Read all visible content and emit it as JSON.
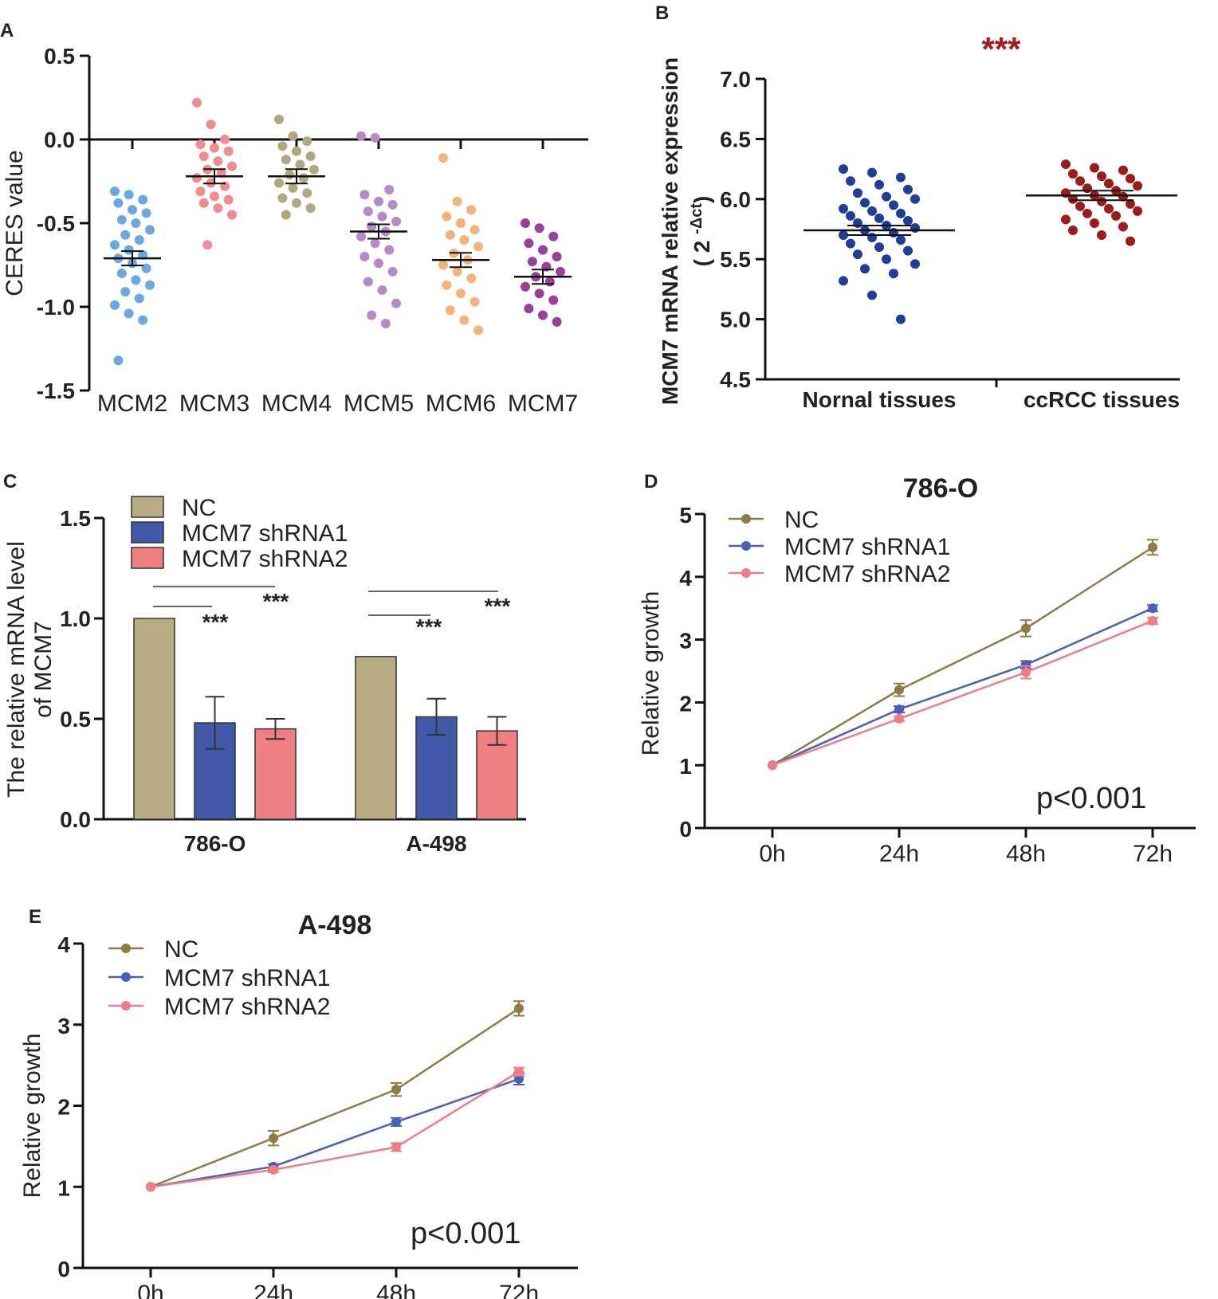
{
  "panels": {
    "a": "A",
    "b": "B",
    "c": "C",
    "d": "D",
    "e": "E"
  },
  "chart_data": [
    {
      "type": "scatter",
      "panel": "A",
      "ylabel": "CERES value",
      "ylim": [
        -1.5,
        0.5
      ],
      "yticks": [
        "0.5",
        "0.0",
        "-0.5",
        "-1.0",
        "-1.5"
      ],
      "categories": [
        "MCM2",
        "MCM3",
        "MCM4",
        "MCM5",
        "MCM6",
        "MCM7"
      ],
      "colors": [
        "#6aa9e0",
        "#f08b91",
        "#b3a780",
        "#b48ac8",
        "#f5b37c",
        "#9b3f98"
      ],
      "means": [
        -0.71,
        -0.22,
        -0.22,
        -0.55,
        -0.72,
        -0.82
      ],
      "points": [
        [
          -0.31,
          -0.33,
          -0.36,
          -0.38,
          -0.42,
          -0.44,
          -0.48,
          -0.5,
          -0.54,
          -0.57,
          -0.6,
          -0.63,
          -0.66,
          -0.69,
          -0.71,
          -0.74,
          -0.77,
          -0.8,
          -0.84,
          -0.87,
          -0.91,
          -0.95,
          -0.99,
          -1.04,
          -1.08,
          -1.32
        ],
        [
          0.22,
          0.09,
          0.0,
          -0.03,
          -0.05,
          -0.07,
          -0.1,
          -0.13,
          -0.16,
          -0.18,
          -0.2,
          -0.23,
          -0.26,
          -0.28,
          -0.31,
          -0.34,
          -0.36,
          -0.38,
          -0.41,
          -0.45,
          -0.63
        ],
        [
          0.12,
          0.02,
          -0.01,
          -0.04,
          -0.07,
          -0.1,
          -0.12,
          -0.15,
          -0.18,
          -0.21,
          -0.23,
          -0.26,
          -0.29,
          -0.32,
          -0.35,
          -0.38,
          -0.41,
          -0.45
        ],
        [
          0.02,
          0.01,
          -0.3,
          -0.33,
          -0.37,
          -0.39,
          -0.43,
          -0.46,
          -0.49,
          -0.52,
          -0.55,
          -0.58,
          -0.62,
          -0.66,
          -0.7,
          -0.74,
          -0.79,
          -0.85,
          -0.9,
          -0.98,
          -1.05,
          -1.1
        ],
        [
          -0.11,
          -0.37,
          -0.42,
          -0.46,
          -0.5,
          -0.54,
          -0.57,
          -0.6,
          -0.64,
          -0.68,
          -0.72,
          -0.75,
          -0.79,
          -0.83,
          -0.87,
          -0.92,
          -0.97,
          -1.02,
          -1.08,
          -1.14
        ],
        [
          -0.5,
          -0.53,
          -0.58,
          -0.62,
          -0.66,
          -0.7,
          -0.73,
          -0.76,
          -0.79,
          -0.82,
          -0.85,
          -0.88,
          -0.92,
          -0.96,
          -1.01,
          -1.05,
          -1.09
        ]
      ]
    },
    {
      "type": "scatter",
      "panel": "B",
      "ylabel": "MCM7 mRNA relative expression",
      "ylabel_sub": "( 2",
      "ylabel_sup": "-Δct",
      "ylabel_end": ")",
      "ylim": [
        4.5,
        7.0
      ],
      "yticks": [
        "7.0",
        "6.5",
        "6.0",
        "5.5",
        "5.0",
        "4.5"
      ],
      "categories": [
        "Nornal tissues",
        "ccRCC tissues"
      ],
      "colors": [
        "#1f3e97",
        "#9e1b1b"
      ],
      "means": [
        5.74,
        6.03
      ],
      "significance": "***",
      "points": [
        [
          6.25,
          6.22,
          6.18,
          6.15,
          6.12,
          6.08,
          6.05,
          6.02,
          6.0,
          5.97,
          5.95,
          5.92,
          5.9,
          5.88,
          5.86,
          5.84,
          5.82,
          5.8,
          5.78,
          5.76,
          5.74,
          5.72,
          5.7,
          5.68,
          5.66,
          5.63,
          5.6,
          5.57,
          5.54,
          5.5,
          5.46,
          5.42,
          5.38,
          5.32,
          5.2,
          5.0
        ],
        [
          6.29,
          6.26,
          6.24,
          6.21,
          6.19,
          6.17,
          6.15,
          6.13,
          6.11,
          6.09,
          6.07,
          6.05,
          6.03,
          6.02,
          6.0,
          5.98,
          5.96,
          5.94,
          5.92,
          5.9,
          5.88,
          5.86,
          5.83,
          5.8,
          5.77,
          5.74,
          5.7,
          5.65
        ]
      ]
    },
    {
      "type": "bar",
      "panel": "C",
      "ylabel": "The relative mRNA level",
      "ylabel2": "of MCM7",
      "ylim": [
        0,
        1.5
      ],
      "yticks": [
        "1.5",
        "1.0",
        "0.5",
        "0.0"
      ],
      "categories": [
        "786-O",
        "A-498"
      ],
      "series": [
        {
          "name": "NC",
          "color": "#b8ad82",
          "values": [
            1.0,
            0.81
          ],
          "errors": [
            0,
            0
          ]
        },
        {
          "name": "MCM7 shRNA1",
          "color": "#4159a8",
          "values": [
            0.48,
            0.51
          ],
          "errors": [
            0.13,
            0.09
          ]
        },
        {
          "name": "MCM7 shRNA2",
          "color": "#f07f81",
          "values": [
            0.45,
            0.44
          ],
          "errors": [
            0.05,
            0.07
          ]
        }
      ],
      "significance": [
        "***",
        "***",
        "***",
        "***"
      ]
    },
    {
      "type": "line",
      "panel": "D",
      "title": "786-O",
      "ylabel": "Relative growth",
      "ylim": [
        0,
        5
      ],
      "yticks": [
        "5",
        "4",
        "3",
        "2",
        "1",
        "0"
      ],
      "x": [
        "0h",
        "24h",
        "48h",
        "72h"
      ],
      "series": [
        {
          "name": "NC",
          "color": "#8d7c46",
          "values": [
            1.0,
            2.2,
            3.18,
            4.47
          ],
          "errors": [
            0.02,
            0.1,
            0.13,
            0.12
          ]
        },
        {
          "name": "MCM7 shRNA1",
          "color": "#4a5fb8",
          "values": [
            1.0,
            1.89,
            2.6,
            3.5
          ],
          "errors": [
            0.02,
            0.05,
            0.06,
            0.05
          ]
        },
        {
          "name": "MCM7 shRNA2",
          "color": "#f07c85",
          "values": [
            1.0,
            1.74,
            2.48,
            3.3
          ],
          "errors": [
            0.02,
            0.04,
            0.1,
            0.05
          ]
        }
      ],
      "annotation": "p<0.001"
    },
    {
      "type": "line",
      "panel": "E",
      "title": "A-498",
      "ylabel": "Relative growth",
      "ylim": [
        0,
        4
      ],
      "yticks": [
        "4",
        "3",
        "2",
        "1",
        "0"
      ],
      "x": [
        "0h",
        "24h",
        "48h",
        "72h"
      ],
      "series": [
        {
          "name": "NC",
          "color": "#8d7c46",
          "values": [
            1.0,
            1.6,
            2.2,
            3.2
          ],
          "errors": [
            0.02,
            0.09,
            0.08,
            0.09
          ]
        },
        {
          "name": "MCM7 shRNA1",
          "color": "#4a5fb8",
          "values": [
            1.0,
            1.25,
            1.8,
            2.33
          ],
          "errors": [
            0.02,
            0.03,
            0.05,
            0.07
          ]
        },
        {
          "name": "MCM7 shRNA2",
          "color": "#f07c85",
          "values": [
            1.0,
            1.21,
            1.49,
            2.42
          ],
          "errors": [
            0.02,
            0.03,
            0.05,
            0.05
          ]
        }
      ],
      "annotation": "p<0.001"
    }
  ]
}
